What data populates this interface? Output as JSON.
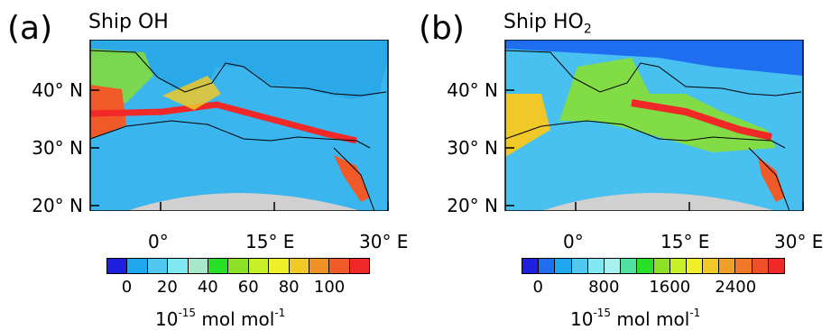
{
  "panels": [
    {
      "label": "(a)",
      "title": "Ship OH",
      "title_sub": "",
      "y_ticks": [
        "40° N",
        "30° N",
        "20° N"
      ],
      "x_ticks": [
        "0°",
        "15° E",
        "30° E"
      ],
      "colorbar": {
        "colors": [
          "#1f1fe0",
          "#1fa8f0",
          "#50c8f0",
          "#7fe8f0",
          "#a8e8c8",
          "#28e028",
          "#8ce028",
          "#c8f028",
          "#f0f028",
          "#f0c828",
          "#f09028",
          "#f05a28",
          "#f02828"
        ],
        "tick_labels": [
          "0",
          "20",
          "40",
          "60",
          "80",
          "100"
        ]
      },
      "units": "10",
      "units_exp": "-15",
      "units_rest": " mol mol",
      "units_exp2": "-1"
    },
    {
      "label": "(b)",
      "title": "Ship HO",
      "title_sub": "2",
      "y_ticks": [
        "40° N",
        "30° N",
        "20° N"
      ],
      "x_ticks": [
        "0°",
        "15° E",
        "30° E"
      ],
      "colorbar": {
        "colors": [
          "#1f1fe0",
          "#1f6ef0",
          "#1fa8f0",
          "#50c8f0",
          "#7fe8f0",
          "#a8f0f0",
          "#50e0a0",
          "#28e028",
          "#8ce028",
          "#c8f028",
          "#f0f028",
          "#f0c828",
          "#f0a028",
          "#f07828",
          "#f05028",
          "#f02828"
        ],
        "tick_labels": [
          "0",
          "800",
          "1600",
          "2400"
        ]
      },
      "units": "10",
      "units_exp": "-15",
      "units_rest": " mol mol",
      "units_exp2": "-1"
    }
  ]
}
